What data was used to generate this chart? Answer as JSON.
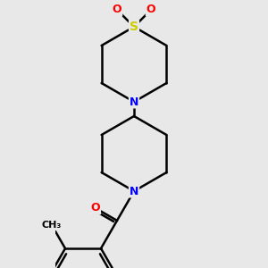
{
  "background_color": "#e8e8e8",
  "atom_colors": {
    "C": "#000000",
    "N": "#0000ff",
    "O": "#ff0000",
    "S": "#cccc00"
  },
  "bond_color": "#000000",
  "bond_width": 1.8,
  "font_size_atom": 9,
  "title": ""
}
